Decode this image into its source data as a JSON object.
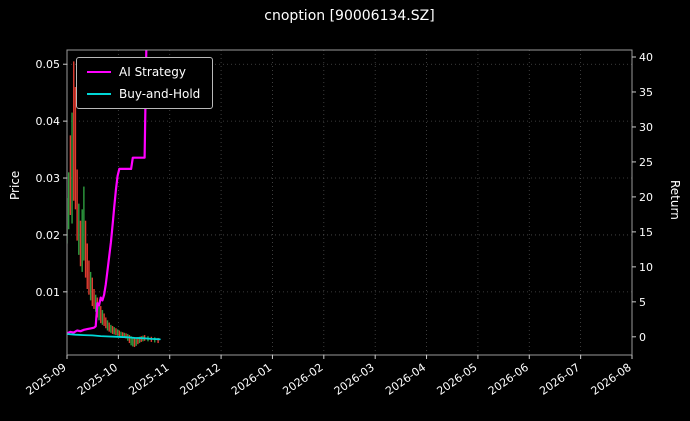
{
  "chart_data": {
    "type": "line",
    "subtype": "candlestick-with-lines",
    "title": "cnoption [90006134.SZ]",
    "x_axis": {
      "tick_labels": [
        "2025-09",
        "2025-10",
        "2025-11",
        "2025-12",
        "2026-01",
        "2026-02",
        "2026-03",
        "2026-04",
        "2026-05",
        "2026-06",
        "2026-07",
        "2026-08"
      ],
      "days_per_month": 30.44
    },
    "price_axis": {
      "label": "Price",
      "ticks": [
        0.01,
        0.02,
        0.03,
        0.04,
        0.05
      ],
      "min": -0.0011,
      "max": 0.0525
    },
    "return_axis": {
      "label": "Return",
      "ticks": [
        0,
        5,
        10,
        15,
        20,
        25,
        30,
        35,
        40
      ],
      "min": -2.6,
      "max": 41.0
    },
    "legend": [
      {
        "label": "AI Strategy",
        "color": "#ff00ff"
      },
      {
        "label": "Buy-and-Hold",
        "color": "#00d8d8"
      }
    ],
    "series": [
      {
        "name": "AI Strategy",
        "axis": "return",
        "color": "#ff00ff",
        "width": 2.2,
        "points": [
          [
            0,
            0.5
          ],
          [
            2,
            0.7
          ],
          [
            4,
            0.6
          ],
          [
            6,
            0.9
          ],
          [
            8,
            0.8
          ],
          [
            10,
            1.0
          ],
          [
            12,
            1.1
          ],
          [
            14,
            1.2
          ],
          [
            16,
            1.3
          ],
          [
            17,
            1.5
          ],
          [
            18,
            4.8
          ],
          [
            19,
            4.5
          ],
          [
            20,
            5.6
          ],
          [
            21,
            5.2
          ],
          [
            22,
            6.0
          ],
          [
            23,
            7.5
          ],
          [
            24,
            9.5
          ],
          [
            25,
            11.5
          ],
          [
            26,
            13.5
          ],
          [
            27,
            16.0
          ],
          [
            28,
            18.5
          ],
          [
            29,
            21.0
          ],
          [
            30,
            23.0
          ],
          [
            31,
            24.0
          ],
          [
            38,
            24.0
          ],
          [
            39,
            25.6
          ],
          [
            46,
            25.6
          ],
          [
            47,
            41.0
          ],
          [
            48,
            44.0
          ]
        ]
      },
      {
        "name": "Buy-and-Hold",
        "axis": "return",
        "color": "#00d8d8",
        "width": 1.8,
        "points": [
          [
            0,
            0.4
          ],
          [
            5,
            0.3
          ],
          [
            10,
            0.25
          ],
          [
            15,
            0.2
          ],
          [
            20,
            0.1
          ],
          [
            25,
            0.05
          ],
          [
            30,
            0.0
          ],
          [
            35,
            -0.05
          ],
          [
            40,
            -0.15
          ],
          [
            45,
            -0.2
          ],
          [
            50,
            -0.3
          ],
          [
            55,
            -0.35
          ]
        ]
      }
    ],
    "candles": {
      "axis": "price",
      "up_color": "#2e9e3f",
      "down_color": "#e03c31",
      "items": [
        [
          0,
          0.0185,
          0.0265,
          "g"
        ],
        [
          1,
          0.021,
          0.031,
          "g"
        ],
        [
          2,
          0.0235,
          0.0375,
          "r"
        ],
        [
          3,
          0.022,
          0.0415,
          "g"
        ],
        [
          4,
          0.026,
          0.0505,
          "r"
        ],
        [
          5,
          0.0245,
          0.046,
          "r"
        ],
        [
          6,
          0.019,
          0.0315,
          "r"
        ],
        [
          7,
          0.0165,
          0.0255,
          "g"
        ],
        [
          8,
          0.0145,
          0.0225,
          "r"
        ],
        [
          9,
          0.0135,
          0.0245,
          "g"
        ],
        [
          10,
          0.0155,
          0.0285,
          "g"
        ],
        [
          11,
          0.0125,
          0.0225,
          "r"
        ],
        [
          12,
          0.0105,
          0.0185,
          "r"
        ],
        [
          13,
          0.0095,
          0.0155,
          "r"
        ],
        [
          14,
          0.0085,
          0.0135,
          "g"
        ],
        [
          15,
          0.0075,
          0.0125,
          "r"
        ],
        [
          16,
          0.007,
          0.0105,
          "r"
        ],
        [
          17,
          0.0065,
          0.0095,
          "g"
        ],
        [
          18,
          0.0055,
          0.009,
          "r"
        ],
        [
          19,
          0.005,
          0.008,
          "g"
        ],
        [
          20,
          0.0045,
          0.0075,
          "r"
        ],
        [
          21,
          0.0042,
          0.0068,
          "g"
        ],
        [
          22,
          0.004,
          0.0062,
          "r"
        ],
        [
          23,
          0.0036,
          0.0055,
          "r"
        ],
        [
          24,
          0.0032,
          0.005,
          "g"
        ],
        [
          25,
          0.003,
          0.0046,
          "r"
        ],
        [
          26,
          0.0028,
          0.0042,
          "g"
        ],
        [
          27,
          0.0026,
          0.004,
          "r"
        ],
        [
          28,
          0.0025,
          0.0038,
          "g"
        ],
        [
          29,
          0.0024,
          0.0036,
          "r"
        ],
        [
          30,
          0.0023,
          0.0034,
          "g"
        ],
        [
          31,
          0.0022,
          0.0032,
          "r"
        ],
        [
          32,
          0.0021,
          0.003,
          "g"
        ],
        [
          33,
          0.002,
          0.0029,
          "r"
        ],
        [
          34,
          0.0019,
          0.0028,
          "g"
        ],
        [
          35,
          0.0018,
          0.0027,
          "r"
        ],
        [
          36,
          0.0014,
          0.0026,
          "g"
        ],
        [
          37,
          0.001,
          0.0024,
          "r"
        ],
        [
          38,
          0.0006,
          0.0022,
          "g"
        ],
        [
          39,
          0.0004,
          0.002,
          "g"
        ],
        [
          40,
          0.0003,
          0.0018,
          "r"
        ],
        [
          41,
          0.0005,
          0.0019,
          "g"
        ],
        [
          42,
          0.0008,
          0.002,
          "r"
        ],
        [
          43,
          0.001,
          0.0021,
          "g"
        ],
        [
          44,
          0.0012,
          0.0022,
          "r"
        ],
        [
          45,
          0.0013,
          0.0023,
          "g"
        ],
        [
          46,
          0.0014,
          0.0024,
          "r"
        ],
        [
          48,
          0.0013,
          0.0022,
          "g"
        ],
        [
          50,
          0.0012,
          0.0021,
          "r"
        ],
        [
          52,
          0.0011,
          0.002,
          "g"
        ],
        [
          54,
          0.001,
          0.0019,
          "r"
        ]
      ]
    },
    "colors": {
      "background": "#000000",
      "text": "#ffffff",
      "grid": "#4d4d4d",
      "border": "#9a9a9a",
      "tick": "#cccccc"
    }
  }
}
